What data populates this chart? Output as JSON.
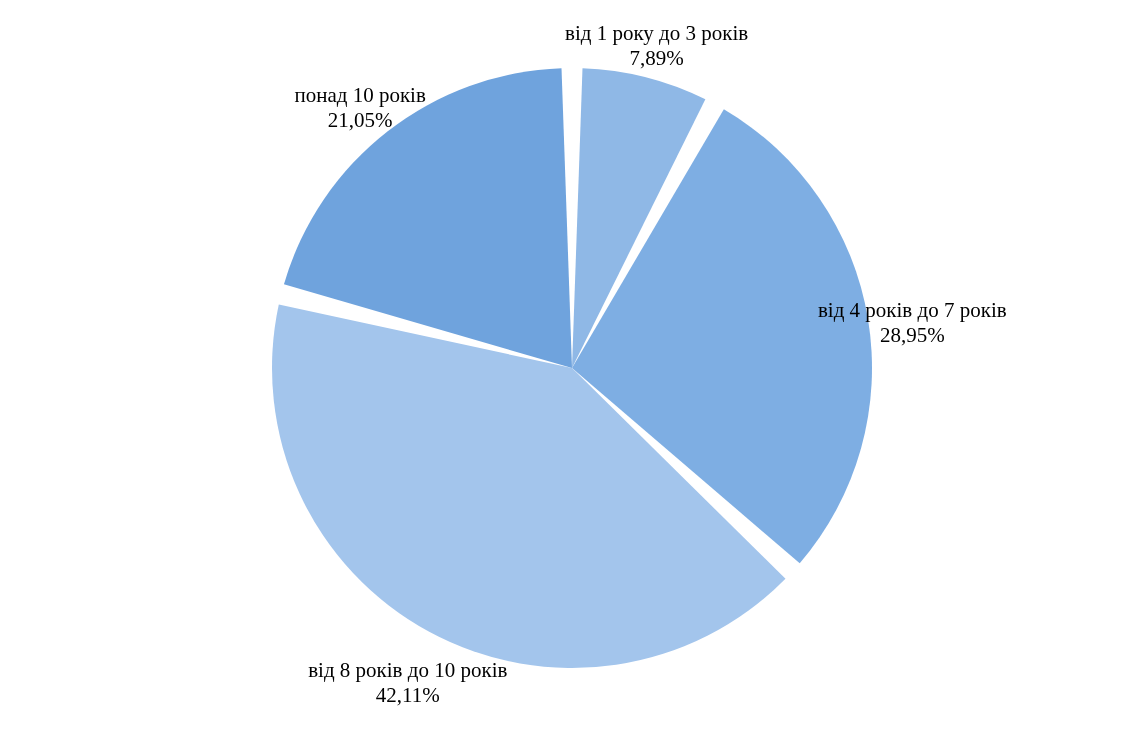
{
  "chart_data": {
    "type": "pie",
    "categories": [
      "від 1 року до 3 років",
      "від 4 років до 7 років",
      "від 8 років до 10 років",
      "понад 10 років"
    ],
    "values": [
      7.89,
      28.95,
      42.11,
      21.05
    ],
    "value_labels": [
      "7,89%",
      "28,95%",
      "42,11%",
      "21,05%"
    ],
    "colors": [
      "#8fb8e6",
      "#7eaee3",
      "#a3c5ec",
      "#6fa3dd"
    ],
    "legend": false
  }
}
